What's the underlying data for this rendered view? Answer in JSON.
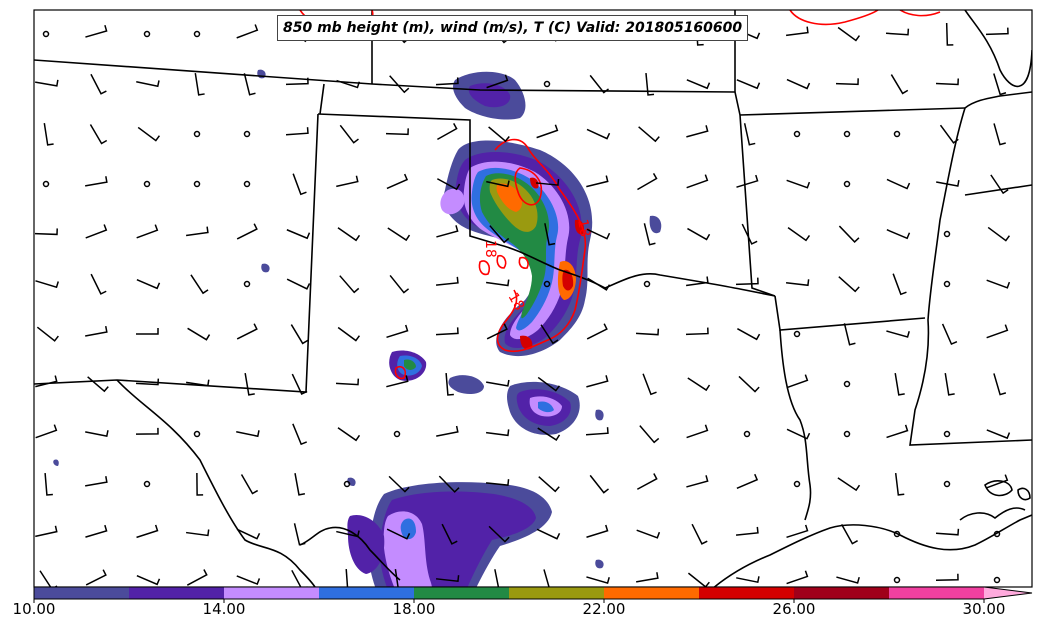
{
  "title": "850 mb height (m), wind (m/s), T (C) Valid: 201805160600",
  "colorbar": {
    "ticks": [
      "10.00",
      "14.00",
      "18.00",
      "22.00",
      "26.00",
      "30.00"
    ],
    "min": 10,
    "max": 30,
    "step": 2,
    "colors": [
      "#4b4b9b",
      "#5222a8",
      "#c48cff",
      "#2f6fe0",
      "#228a44",
      "#9a9a10",
      "#ff6a00",
      "#d40000",
      "#a0001a",
      "#f040a0"
    ],
    "extend_color": "#ffaadd"
  },
  "contours": {
    "color": "#ff0000",
    "labels": [
      "18",
      "18",
      "18"
    ]
  }
}
